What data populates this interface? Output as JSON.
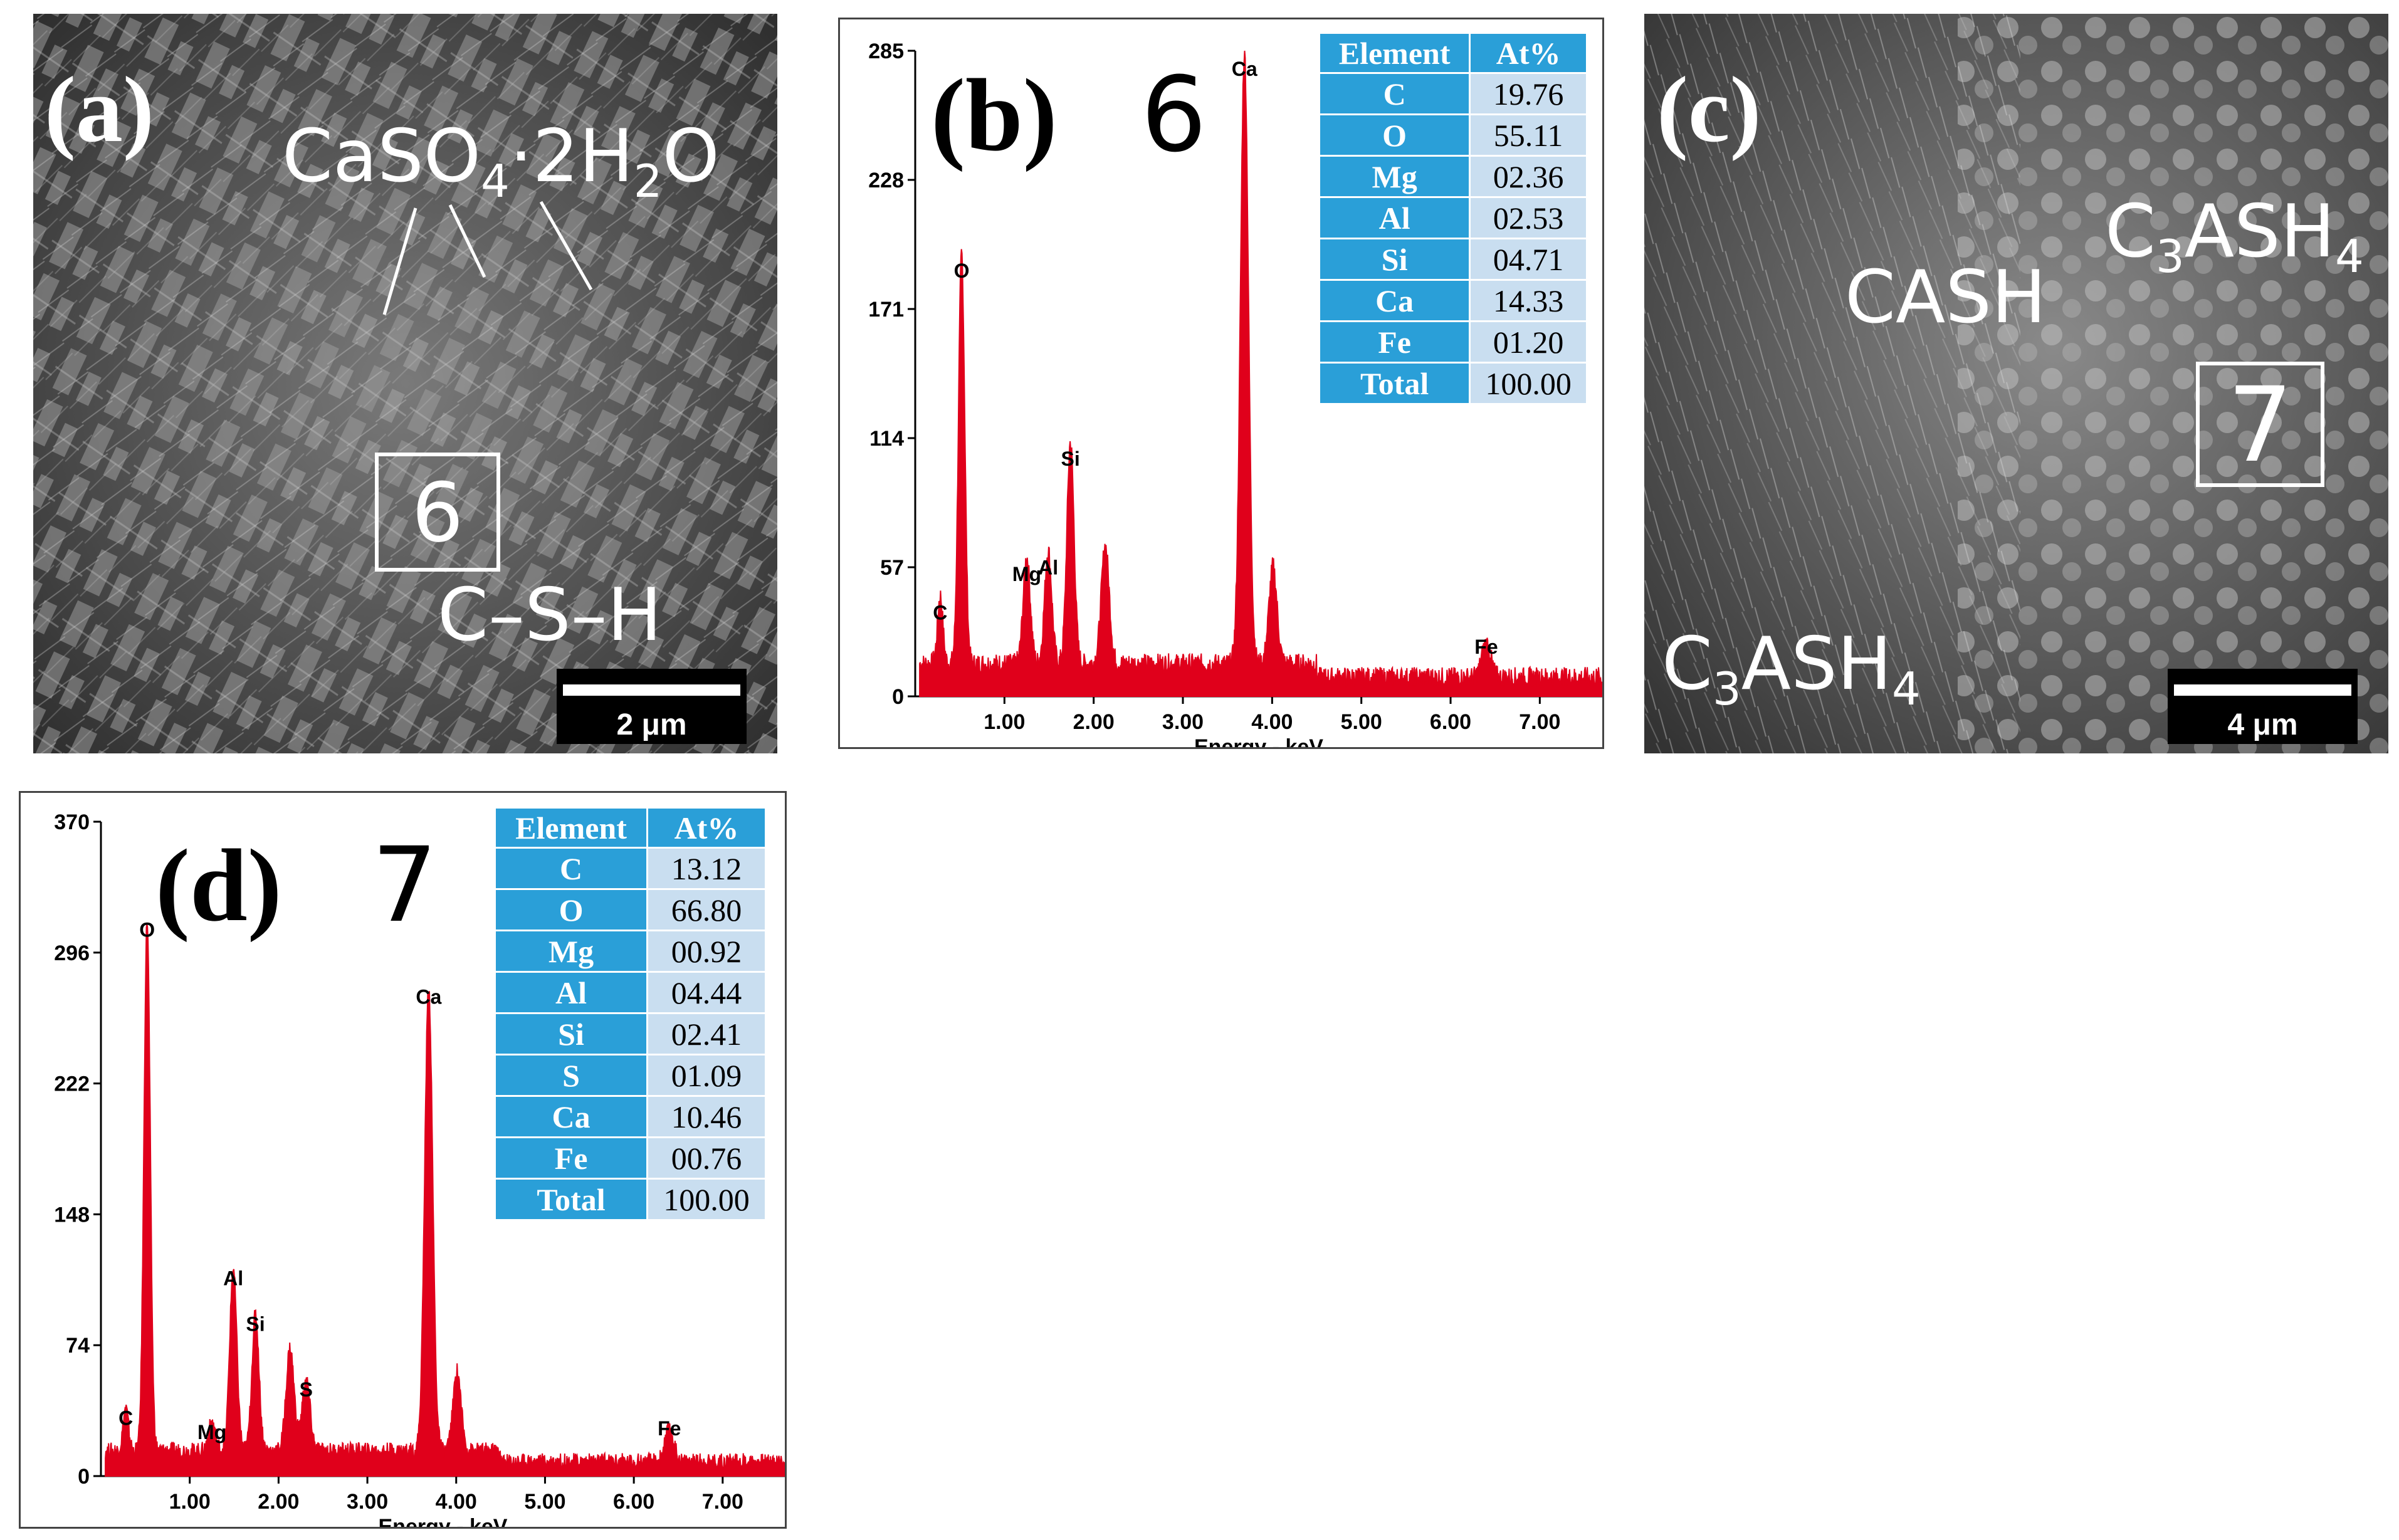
{
  "panel_a": {
    "label": "(a)",
    "annotation_main": "CaSO",
    "annotation_sub1": "4",
    "annotation_mid": "·2H",
    "annotation_sub2": "2",
    "annotation_end": "O",
    "phase_label": "C–S–H",
    "roi_number": "6",
    "scale_text": "2 μm"
  },
  "panel_c": {
    "label": "(c)",
    "phase_cash": "CASH",
    "phase_c3ash4_top_a": "C",
    "phase_c3ash4_top_b": "3",
    "phase_c3ash4_top_c": "ASH",
    "phase_c3ash4_top_d": "4",
    "phase_c3ash4_bot_a": "C",
    "phase_c3ash4_bot_b": "3",
    "phase_c3ash4_bot_c": "ASH",
    "phase_c3ash4_bot_d": "4",
    "roi_number": "7",
    "scale_text": "4 μm"
  },
  "chart_data": [
    {
      "type": "eds_spectrum",
      "panel_label": "(b)",
      "roi_label": "6",
      "xlabel": "Energy - keV",
      "xticks": [
        "1.00",
        "2.00",
        "3.00",
        "4.00",
        "5.00",
        "6.00",
        "7.00"
      ],
      "xlim": [
        0,
        7.7
      ],
      "yticks": [
        "0",
        "57",
        "114",
        "171",
        "228",
        "285"
      ],
      "ylim": [
        0,
        285
      ],
      "peaks": [
        {
          "element": "C",
          "energy": 0.28,
          "counts": 30
        },
        {
          "element": "O",
          "energy": 0.52,
          "counts": 181
        },
        {
          "element": "Mg",
          "energy": 1.25,
          "counts": 47
        },
        {
          "element": "Al",
          "energy": 1.49,
          "counts": 50
        },
        {
          "element": "Si",
          "energy": 1.74,
          "counts": 98
        },
        {
          "element": "",
          "energy": 2.13,
          "counts": 52
        },
        {
          "element": "Ca",
          "energy": 3.69,
          "counts": 270
        },
        {
          "element": "",
          "energy": 4.01,
          "counts": 43
        },
        {
          "element": "Fe",
          "energy": 6.4,
          "counts": 15
        }
      ],
      "table": {
        "headers": [
          "Element",
          "At%"
        ],
        "rows": [
          [
            "C",
            "19.76"
          ],
          [
            "O",
            "55.11"
          ],
          [
            "Mg",
            "02.36"
          ],
          [
            "Al",
            "02.53"
          ],
          [
            "Si",
            "04.71"
          ],
          [
            "Ca",
            "14.33"
          ],
          [
            "Fe",
            "01.20"
          ],
          [
            "Total",
            "100.00"
          ]
        ]
      },
      "color": "#e0001b"
    },
    {
      "type": "eds_spectrum",
      "panel_label": "(d)",
      "roi_label": "7",
      "xlabel": "Energy - keV",
      "xticks": [
        "1.00",
        "2.00",
        "3.00",
        "4.00",
        "5.00",
        "6.00",
        "7.00"
      ],
      "xlim": [
        0,
        7.7
      ],
      "yticks": [
        "0",
        "74",
        "148",
        "222",
        "296",
        "370"
      ],
      "ylim": [
        0,
        370
      ],
      "peaks": [
        {
          "element": "C",
          "energy": 0.28,
          "counts": 24
        },
        {
          "element": "O",
          "energy": 0.52,
          "counts": 300
        },
        {
          "element": "Mg",
          "energy": 1.25,
          "counts": 16
        },
        {
          "element": "Al",
          "energy": 1.49,
          "counts": 103
        },
        {
          "element": "Si",
          "energy": 1.74,
          "counts": 77
        },
        {
          "element": "S",
          "energy": 2.31,
          "counts": 40
        },
        {
          "element": "",
          "energy": 2.13,
          "counts": 58
        },
        {
          "element": "Ca",
          "energy": 3.69,
          "counts": 262
        },
        {
          "element": "",
          "energy": 4.01,
          "counts": 45
        },
        {
          "element": "Fe",
          "energy": 6.4,
          "counts": 18
        }
      ],
      "table": {
        "headers": [
          "Element",
          "At%"
        ],
        "rows": [
          [
            "C",
            "13.12"
          ],
          [
            "O",
            "66.80"
          ],
          [
            "Mg",
            "00.92"
          ],
          [
            "Al",
            "04.44"
          ],
          [
            "Si",
            "02.41"
          ],
          [
            "S",
            "01.09"
          ],
          [
            "Ca",
            "10.46"
          ],
          [
            "Fe",
            "00.76"
          ],
          [
            "Total",
            "100.00"
          ]
        ]
      },
      "color": "#e0001b"
    }
  ]
}
